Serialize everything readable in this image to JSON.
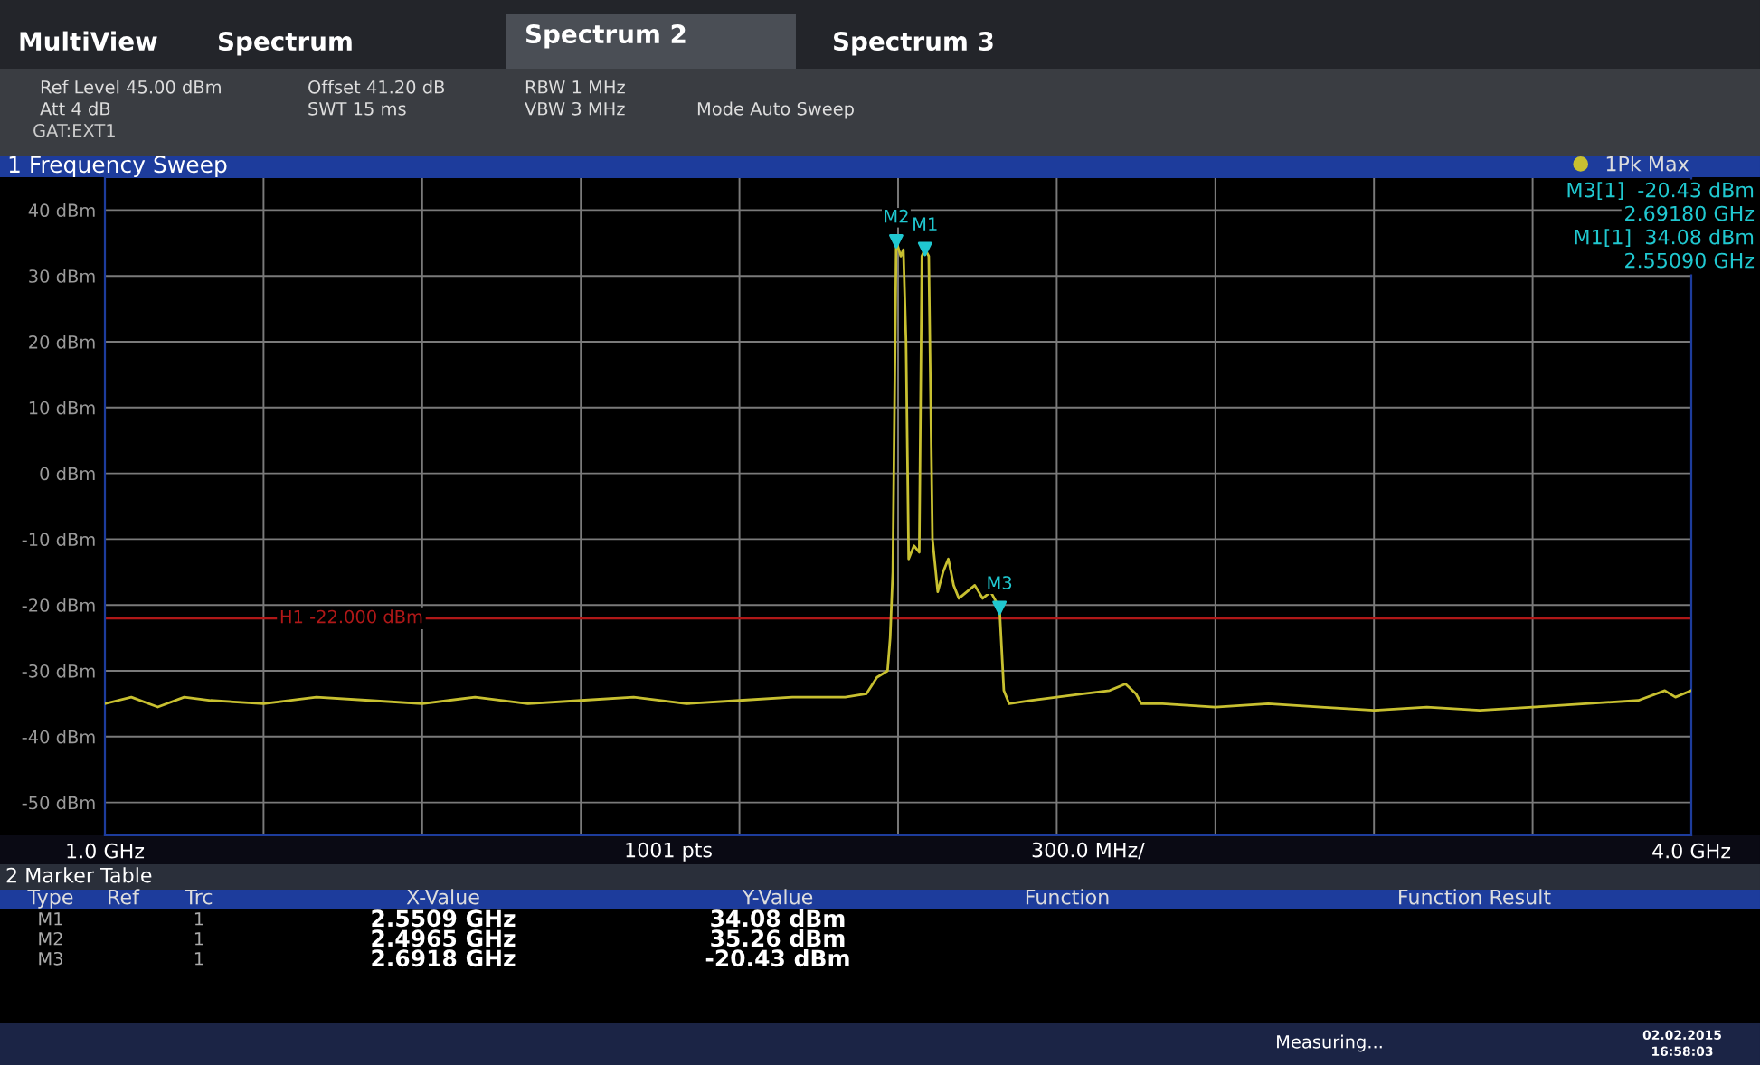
{
  "chart_data": {
    "type": "line",
    "title": "1 Frequency Sweep",
    "x": [
      1.0,
      1.05,
      1.1,
      1.15,
      1.2,
      1.3,
      1.4,
      1.5,
      1.6,
      1.7,
      1.8,
      1.9,
      2.0,
      2.1,
      2.2,
      2.3,
      2.4,
      2.44,
      2.46,
      2.48,
      2.485,
      2.49,
      2.4965,
      2.505,
      2.51,
      2.515,
      2.52,
      2.53,
      2.54,
      2.545,
      2.5509,
      2.558,
      2.565,
      2.575,
      2.585,
      2.595,
      2.605,
      2.615,
      2.63,
      2.645,
      2.66,
      2.675,
      2.6918,
      2.7,
      2.71,
      2.75,
      2.8,
      2.85,
      2.9,
      2.93,
      2.95,
      2.96,
      3.0,
      3.1,
      3.2,
      3.3,
      3.4,
      3.5,
      3.6,
      3.7,
      3.8,
      3.9,
      3.95,
      3.97,
      4.0
    ],
    "series": [
      {
        "name": "1Pk Max",
        "color": "#c8c030",
        "values": [
          -35,
          -34,
          -35.5,
          -34,
          -34.5,
          -35,
          -34,
          -34.5,
          -35,
          -34,
          -35,
          -34.5,
          -34,
          -35,
          -34.5,
          -34,
          -34,
          -33.5,
          -31,
          -30,
          -25,
          -15,
          35.26,
          33,
          34,
          20,
          -13,
          -11,
          -12,
          33,
          34.08,
          33,
          -10,
          -18,
          -15,
          -13,
          -17,
          -19,
          -18,
          -17,
          -19,
          -18,
          -20.43,
          -33,
          -35,
          -34.5,
          -34,
          -33.5,
          -33,
          -32,
          -33.5,
          -35,
          -35,
          -35.5,
          -35,
          -35.5,
          -36,
          -35.5,
          -36,
          -35.5,
          -35,
          -34.5,
          -33,
          -34,
          -33
        ]
      }
    ],
    "xlim": [
      1.0,
      4.0
    ],
    "xticks": [
      {
        "value": 1.0,
        "label": "1.0 GHz"
      },
      {
        "value": 1.3,
        "label": null
      },
      {
        "value": 1.6,
        "label": null
      },
      {
        "value": 1.9,
        "label": null
      },
      {
        "value": 2.2,
        "label": null
      },
      {
        "value": 2.5,
        "label": null
      },
      {
        "value": 2.8,
        "label": null
      },
      {
        "value": 3.1,
        "label": null
      },
      {
        "value": 3.4,
        "label": null
      },
      {
        "value": 3.7,
        "label": null
      },
      {
        "value": 4.0,
        "label": "4.0 GHz"
      }
    ],
    "ylim": [
      -55,
      45
    ],
    "yticks": [
      {
        "value": -50,
        "label": "-50 dBm"
      },
      {
        "value": -40,
        "label": "-40 dBm"
      },
      {
        "value": -30,
        "label": "-30 dBm"
      },
      {
        "value": -20,
        "label": "-20 dBm"
      },
      {
        "value": -10,
        "label": "-10 dBm"
      },
      {
        "value": 0,
        "label": "0 dBm"
      },
      {
        "value": 10,
        "label": "10 dBm"
      },
      {
        "value": 20,
        "label": "20 dBm"
      },
      {
        "value": 30,
        "label": "30 dBm"
      },
      {
        "value": 40,
        "label": "40 dBm"
      }
    ],
    "grid": true,
    "legend": "top right",
    "ref_lines": [
      {
        "axis": "y",
        "value": -22,
        "label": "H1 -22.000 dBm",
        "color": "#b01818"
      }
    ],
    "annotations": [
      {
        "text": "M1",
        "x": 2.5509,
        "y": 34.08
      },
      {
        "text": "M2",
        "x": 2.4965,
        "y": 35.26
      },
      {
        "text": "M3",
        "x": 2.6918,
        "y": -20.43
      },
      "MultiView",
      "Spectrum",
      "Spectrum 2",
      "Spectrum 3",
      "Ref Level 45.00 dBm",
      "Att 4 dB",
      "GAT:EXT1",
      "Offset 41.20 dB",
      "SWT 15 ms",
      "RBW 1 MHz",
      "VBW 3 MHz",
      "Mode Auto Sweep",
      "M3[1]  -20.43 dBm",
      "2.69180 GHz",
      "M1[1]  34.08 dBm",
      "2.55090 GHz",
      "1001 pts",
      "300.0 MHz/",
      "2 Marker Table",
      "Type",
      "Ref",
      "Trc",
      "X-Value",
      "Y-Value",
      "Function",
      "Function Result",
      "M1",
      "1",
      "2.5509 GHz",
      "34.08 dBm",
      "M2",
      "1",
      "2.4965 GHz",
      "35.26 dBm",
      "M3",
      "1",
      "2.6918 GHz",
      "-20.43 dBm",
      "Measuring...",
      "02.02.2015",
      "16:58:03"
    ]
  }
}
